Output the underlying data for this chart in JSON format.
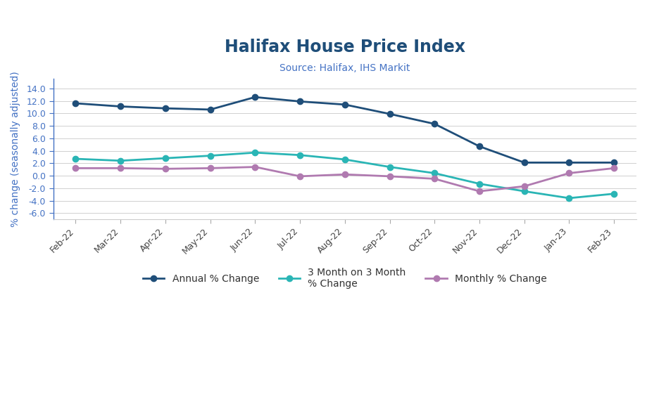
{
  "title": "Halifax House Price Index",
  "subtitle": "Source: Halifax, IHS Markit",
  "ylabel": "% change (seasonally adjusted)",
  "categories": [
    "Feb-22",
    "Mar-22",
    "Apr-22",
    "May-22",
    "Jun-22",
    "Jul-22",
    "Aug-22",
    "Sep-22",
    "Oct-22",
    "Nov-22",
    "Dec-22",
    "Jan-23",
    "Feb-23"
  ],
  "annual": [
    11.6,
    11.1,
    10.8,
    10.6,
    12.6,
    11.9,
    11.4,
    9.9,
    8.3,
    4.7,
    2.1,
    2.1,
    2.1
  ],
  "three_month": [
    2.7,
    2.4,
    2.8,
    3.2,
    3.7,
    3.3,
    2.6,
    1.4,
    0.4,
    -1.3,
    -2.5,
    -3.6,
    -2.9
  ],
  "monthly": [
    1.2,
    1.2,
    1.1,
    1.2,
    1.4,
    -0.1,
    0.2,
    -0.1,
    -0.5,
    -2.5,
    -1.7,
    0.4,
    1.2
  ],
  "annual_color": "#1f4e79",
  "three_month_color": "#2ab5b5",
  "monthly_color": "#b07ab0",
  "title_color": "#1f4e79",
  "subtitle_color": "#4472c4",
  "ylabel_color": "#4472c4",
  "ytick_color": "#4472c4",
  "ylim": [
    -7.0,
    15.5
  ],
  "yticks": [
    -6.0,
    -4.0,
    -2.0,
    0.0,
    2.0,
    4.0,
    6.0,
    8.0,
    10.0,
    12.0,
    14.0
  ],
  "background_color": "#ffffff",
  "legend_annual": "Annual % Change",
  "legend_three_month": "3 Month on 3 Month\n% Change",
  "legend_monthly": "Monthly % Change"
}
